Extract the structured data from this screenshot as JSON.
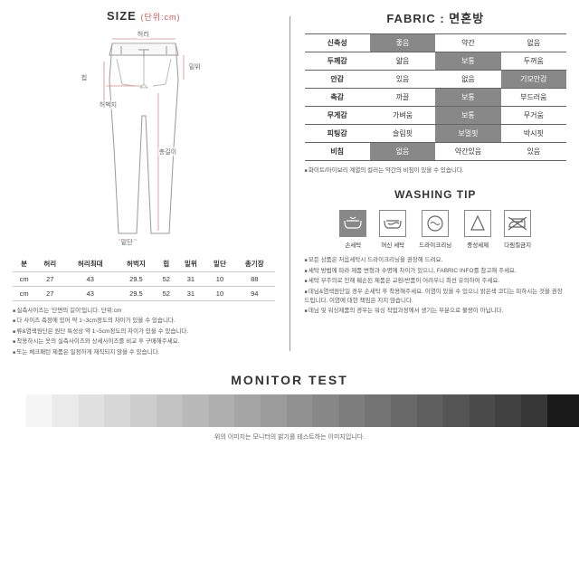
{
  "size": {
    "title": "SIZE",
    "unit": "(단위:cm)",
    "labels": {
      "waist": "허리",
      "hip": "힙",
      "thigh": "허벅지",
      "rise": "밑위",
      "length": "총길이",
      "hem": "밑단"
    },
    "columns": [
      "분",
      "허리",
      "허리최대",
      "허벅지",
      "힙",
      "밑위",
      "밑단",
      "총기장"
    ],
    "rows": [
      [
        "cm",
        "27",
        "43",
        "29.5",
        "52",
        "31",
        "10",
        "88"
      ],
      [
        "cm",
        "27",
        "43",
        "29.5",
        "52",
        "31",
        "10",
        "94"
      ]
    ],
    "notes": [
      "실측사이즈는 '단면의 길이'입니다. 단위:cm",
      "다 사이즈 측정에 있어 약 1~3cm정도의 차이가 있을 수 있습니다.",
      "류&염색원단은 원단 특성상 약 1~5cm정도의 차이가 있을 수 있습니다.",
      "착용하시는 옷의 실측사이즈와 상세사이즈를 비교 후 구매해주세요.",
      "또는 체크패턴 제품은 일정하게 재직되지 않을 수 있습니다."
    ]
  },
  "fabric": {
    "title": "FABRIC : 면혼방",
    "rows": [
      {
        "label": "신축성",
        "opts": [
          "좋음",
          "약간",
          "없음"
        ],
        "sel": 0
      },
      {
        "label": "두께감",
        "opts": [
          "얇음",
          "보통",
          "두꺼움"
        ],
        "sel": 1
      },
      {
        "label": "안감",
        "opts": [
          "있음",
          "없음",
          "기모안감"
        ],
        "sel": 2
      },
      {
        "label": "촉감",
        "opts": [
          "까끌",
          "보통",
          "부드러움"
        ],
        "sel": 1
      },
      {
        "label": "무게감",
        "opts": [
          "가벼움",
          "보통",
          "무거움"
        ],
        "sel": 1
      },
      {
        "label": "피팅감",
        "opts": [
          "슬림핏",
          "보멀핏",
          "박시핏"
        ],
        "sel": 1
      },
      {
        "label": "비침",
        "opts": [
          "없음",
          "약간있음",
          "있음"
        ],
        "sel": 0
      }
    ],
    "note": "화이트/아이보리 계열의 컬러는 약간의 비침이 있을 수 있습니다."
  },
  "washing": {
    "title": "WASHING TIP",
    "items": [
      {
        "label": "손세탁",
        "sel": true,
        "icon": "hand"
      },
      {
        "label": "머신 세탁",
        "sel": false,
        "icon": "machine"
      },
      {
        "label": "드라이크리닝",
        "sel": false,
        "icon": "dry"
      },
      {
        "label": "중성세제",
        "sel": false,
        "icon": "mild"
      },
      {
        "label": "다림질금지",
        "sel": false,
        "icon": "noiron"
      }
    ],
    "notes": [
      "모든 상품은 처음세탁시 드라이크리닝을 권장해 드려요.",
      "세탁 방법에 따라 제품 변형과 수명에 차이가 있으니, FABRIC INFO를 참고해 주세요.",
      "세탁 부주의로 인해 훼손된 제품은 교환/반품이 어려우니 최선 유의하여 주세요.",
      "데님&염색원단일 경우 손세탁 후 착용해주세요. 이염이 있을 수 있으니 밝은색 코디는 피하시는 것을 권장드립니다. 이염에 대한 책임은 지지 않습니다.",
      "데님 및 워싱제품의 경우는 워싱 작업과정에서 생기는 부분으로 불량이 아닙니다."
    ]
  },
  "monitor": {
    "title": "MONITOR TEST",
    "note": "위의 이미지는 모니터의 밝기를 테스트하는 이미지입니다."
  }
}
